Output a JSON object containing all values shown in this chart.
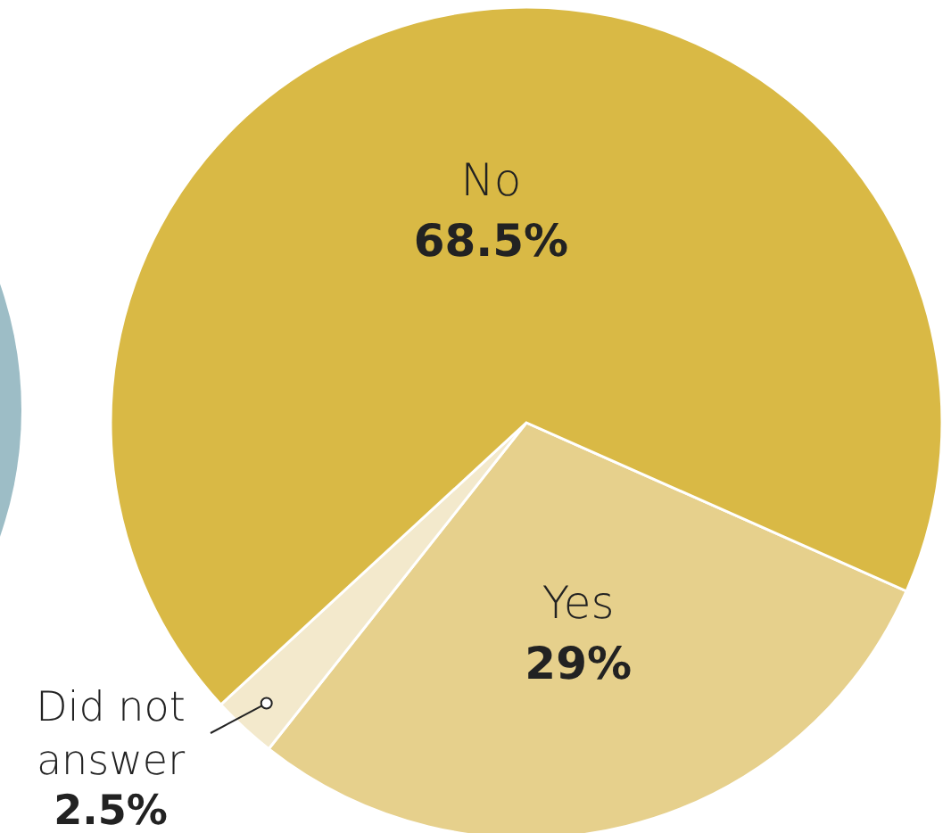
{
  "chart_data": {
    "type": "pie",
    "categories": [
      "Yes",
      "Did not answer",
      "No"
    ],
    "values": [
      29,
      2.5,
      68.5
    ],
    "colors": [
      "#e6d08c",
      "#f3e9cc",
      "#d9b945"
    ],
    "value_labels": [
      "29%",
      "2.5%",
      "68.5%"
    ]
  }
}
